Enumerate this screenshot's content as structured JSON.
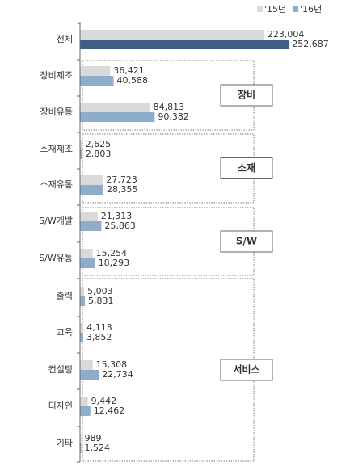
{
  "chart_data": {
    "type": "bar",
    "orientation": "horizontal",
    "categories": [
      "전체",
      "장비제조",
      "장비유통",
      "소재제조",
      "소재유통",
      "S/W개발",
      "S/W유통",
      "출력",
      "교육",
      "컨설팅",
      "디자인",
      "기타"
    ],
    "series": [
      {
        "name": "'15년",
        "values": [
          223004,
          36421,
          84813,
          2625,
          27723,
          21313,
          15254,
          5003,
          4113,
          15308,
          9442,
          989
        ]
      },
      {
        "name": "'16년",
        "values": [
          252687,
          40588,
          90382,
          2803,
          28355,
          25863,
          18293,
          5831,
          3852,
          22734,
          12462,
          1524
        ]
      }
    ],
    "data_labels": {
      "15": [
        "223,004",
        "36,421",
        "84,813",
        "2,625",
        "27,723",
        "21,313",
        "15,254",
        "5,003",
        "4,113",
        "15,308",
        "9,442",
        "989"
      ],
      "16": [
        "252,687",
        "40,588",
        "90,382",
        "2,803",
        "28,355",
        "25,863",
        "18,293",
        "5,831",
        "3,852",
        "22,734",
        "12,462",
        "1,524"
      ]
    },
    "groups": [
      {
        "label": "장비",
        "categories": [
          "장비제조",
          "장비유통"
        ]
      },
      {
        "label": "소재",
        "categories": [
          "소재제조",
          "소재유통"
        ]
      },
      {
        "label": "S/W",
        "categories": [
          "S/W개발",
          "S/W유통"
        ]
      },
      {
        "label": "서비스",
        "categories": [
          "출력",
          "교육",
          "컨설팅",
          "디자인",
          "기타"
        ]
      }
    ],
    "legend_position": "top-right",
    "colors": {
      "y15": "#d9d9d9",
      "y16": "#8eaccb",
      "y16_total": "#3d5f86"
    }
  }
}
